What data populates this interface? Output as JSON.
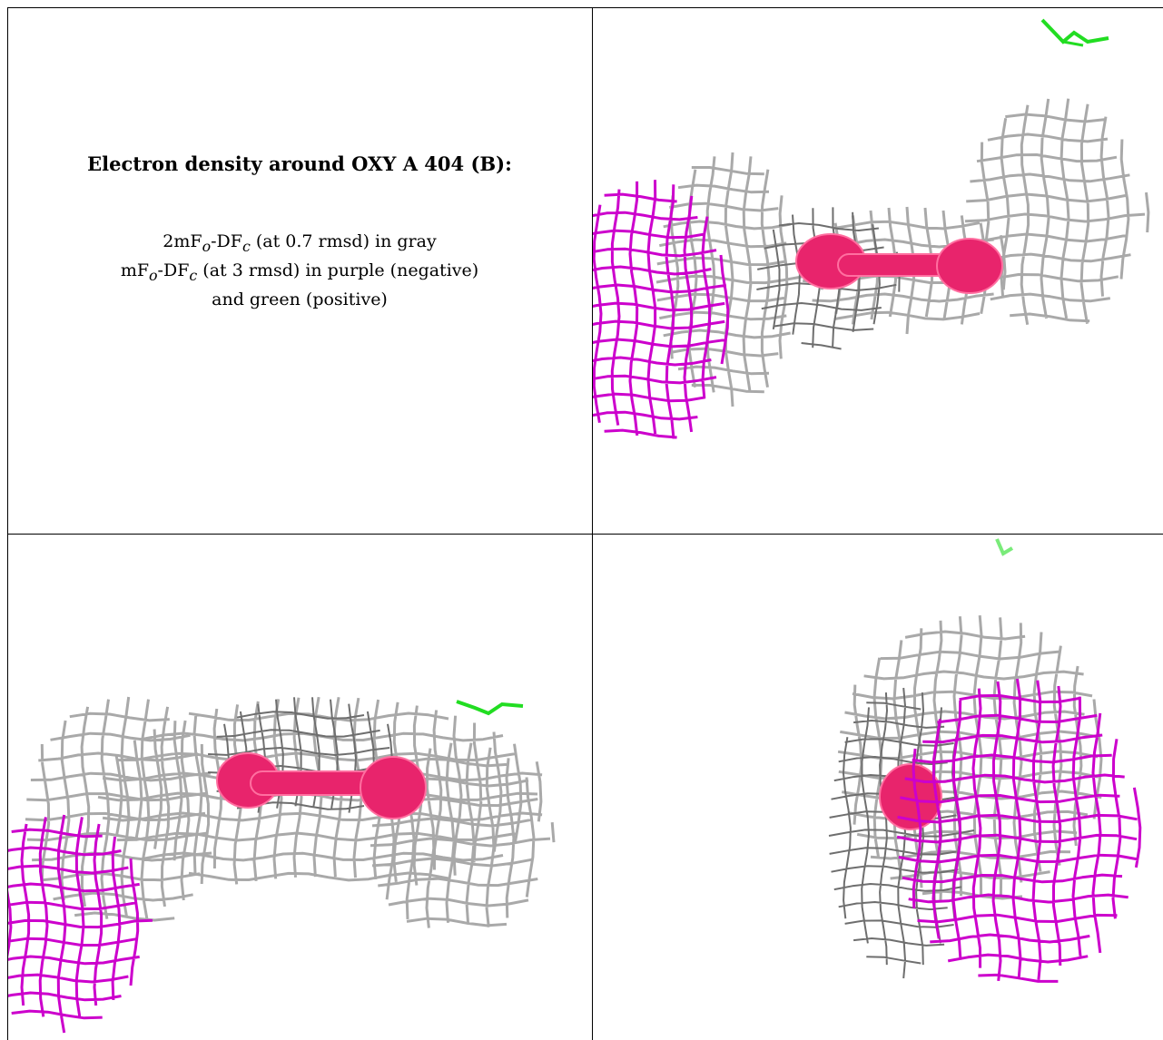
{
  "panel_title": "Electron density around OXY A 404 (B):",
  "legend": {
    "line1_prefix": "2mF",
    "line1_sub1": "o",
    "line1_mid": "-DF",
    "line1_sub2": "c",
    "line1_suffix": " (at 0.7 rmsd) in gray",
    "line2_prefix": "mF",
    "line2_sub1": "o",
    "line2_mid": "-DF",
    "line2_sub2": "c",
    "line2_suffix": " (at 3 rmsd) in purple (negative)",
    "line3": "and green (positive)"
  },
  "colors": {
    "gray_mesh": "#a9a9a9",
    "gray_mesh_dark": "#6e6e6e",
    "purple_mesh": "#cc00cc",
    "green_mesh": "#22dd22",
    "ligand": "#e8246c",
    "ligand_highlight": "#ff6fa0"
  }
}
